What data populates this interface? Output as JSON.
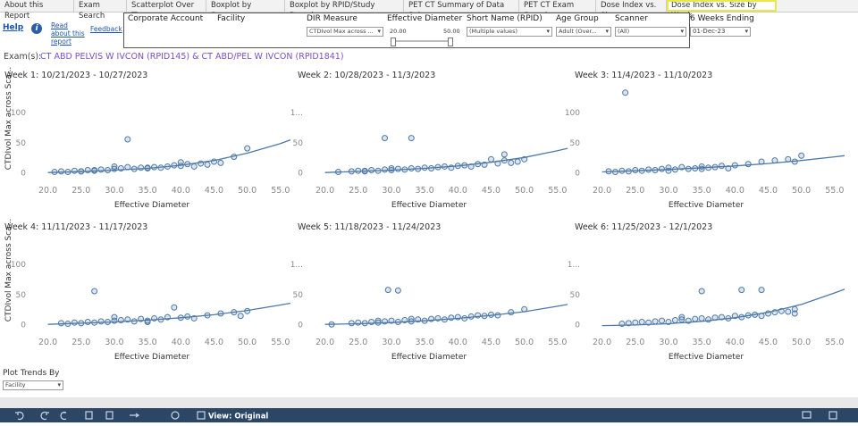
{
  "ui": {
    "tabs": [
      "About this Report",
      "Exam Search",
      "Scatterplot Over Time",
      "Boxplot by Scanner",
      "Boxplot by RPID/Study Descri...",
      "PET CT Summary of Data Sub...",
      "PET CT Exam Search",
      "Dose Index vs. Size",
      "Dose Index vs. Size by Week"
    ],
    "help": "Help",
    "info": "i",
    "read_about": "Read about this report",
    "feedback": "Feedback",
    "filters": [
      {
        "label": "Corporate Account"
      },
      {
        "label": "Facility"
      },
      {
        "label": "DIR Measure",
        "value": "CTDIvol Max across ..."
      },
      {
        "label": "Effective Diameter",
        "min": "20.00",
        "max": "50.00"
      },
      {
        "label": "Short Name (RPID)",
        "value": "(Multiple values)"
      },
      {
        "label": "Age Group",
        "value": "Adult (Over..."
      },
      {
        "label": "Scanner",
        "value": "(All)"
      }
    ],
    "weeks_ending": {
      "label": "6 Weeks Ending",
      "value": "01-Dec-23"
    },
    "exam_label": "Exam(s):",
    "exam_value": "CT ABD PELVIS W IVCON (RPID145) & CT ABD/PEL W IVCON (RPID1841)",
    "plot_trends": {
      "label": "Plot Trends By",
      "value": "Facility"
    },
    "view": "View: Original"
  },
  "chart_data": [
    {
      "type": "scatter",
      "title": "Week 1: 10/21/2023 - 10/27/2023",
      "x_label": "Effective Diameter",
      "y_label": "CTDIvol Max across Sca...",
      "color": "#4e79a7",
      "xlim": [
        17.5,
        56.5
      ],
      "ylim": [
        -10,
        145
      ],
      "xticks": [
        {
          "value": 20,
          "label": "20.0"
        },
        {
          "value": 25,
          "label": "25.0"
        },
        {
          "value": 30,
          "label": "30.0"
        },
        {
          "value": 35,
          "label": "35.0"
        },
        {
          "value": 40,
          "label": "40.0"
        },
        {
          "value": 45,
          "label": "45.0"
        },
        {
          "value": 50,
          "label": "50.0"
        },
        {
          "value": 55,
          "label": "55.0"
        }
      ],
      "yticks": [
        0,
        50,
        100
      ],
      "x": [
        21,
        22,
        23,
        24,
        25,
        26,
        27,
        28,
        29,
        30,
        31,
        32,
        33,
        34,
        35,
        36,
        37,
        38,
        39,
        40,
        41,
        42,
        43,
        44,
        45,
        46,
        48,
        50,
        32,
        27,
        30,
        40,
        35,
        25
      ],
      "values": [
        1,
        2,
        1,
        3,
        2,
        4,
        3,
        5,
        4,
        6,
        7,
        55,
        6,
        8,
        7,
        9,
        8,
        10,
        12,
        11,
        14,
        10,
        15,
        13,
        18,
        16,
        26,
        40,
        9,
        4,
        10,
        17,
        8,
        2
      ],
      "trend": {
        "x": [
          20,
          25,
          30,
          35,
          40,
          45,
          50,
          55,
          56.5
        ],
        "y": [
          0,
          1.5,
          4,
          7,
          12,
          20,
          32,
          48,
          54
        ]
      }
    },
    {
      "type": "scatter",
      "title": "Week 2: 10/28/2023 - 11/3/2023",
      "x_label": "Effective Diameter",
      "color": "#4e79a7",
      "xlim": [
        17.5,
        56.5
      ],
      "ylim": [
        -10,
        145
      ],
      "xticks": [
        {
          "value": 20,
          "label": "20.0"
        },
        {
          "value": 25,
          "label": "25.0"
        },
        {
          "value": 30,
          "label": "30.0"
        },
        {
          "value": 35,
          "label": "35.0"
        },
        {
          "value": 40,
          "label": "40.0"
        },
        {
          "value": 45,
          "label": "45.0"
        },
        {
          "value": 50,
          "label": "50.0"
        },
        {
          "value": 55,
          "label": "55.0"
        }
      ],
      "yticks": [
        0,
        50,
        {
          "value": 100,
          "label": "1..."
        }
      ],
      "x": [
        22,
        24,
        25,
        26,
        27,
        28,
        29,
        29,
        30,
        31,
        32,
        33,
        33,
        34,
        35,
        36,
        37,
        38,
        39,
        40,
        41,
        42,
        43,
        44,
        45,
        46,
        47,
        47,
        48,
        49,
        50,
        26,
        30
      ],
      "values": [
        1,
        2,
        3,
        2,
        4,
        3,
        57,
        5,
        4,
        6,
        5,
        57,
        7,
        6,
        8,
        7,
        9,
        10,
        8,
        11,
        12,
        10,
        14,
        13,
        22,
        15,
        30,
        20,
        16,
        18,
        22,
        3,
        7
      ],
      "trend": {
        "x": [
          20,
          25,
          30,
          35,
          40,
          45,
          50,
          55,
          56.5
        ],
        "y": [
          0,
          2,
          4,
          7,
          11,
          17,
          25,
          36,
          40
        ]
      }
    },
    {
      "type": "scatter",
      "title": "Week 3: 11/4/2023 - 11/10/2023",
      "x_label": "Effective Diameter",
      "color": "#4e79a7",
      "xlim": [
        17.5,
        56.5
      ],
      "ylim": [
        -10,
        145
      ],
      "xticks": [
        {
          "value": 20,
          "label": "20.0"
        },
        {
          "value": 25,
          "label": "25.0"
        },
        {
          "value": 30,
          "label": "30.0"
        },
        {
          "value": 35,
          "label": "35.0"
        },
        {
          "value": 40,
          "label": "40.0"
        },
        {
          "value": 45,
          "label": "45.0"
        },
        {
          "value": 50,
          "label": "50.0"
        },
        {
          "value": 55,
          "label": "55.0"
        }
      ],
      "yticks": [
        0,
        50,
        100
      ],
      "x": [
        21,
        22,
        23,
        23.5,
        24,
        25,
        26,
        27,
        28,
        29,
        30,
        31,
        32,
        33,
        34,
        35,
        36,
        37,
        38,
        39,
        40,
        42,
        44,
        46,
        48,
        49,
        50,
        30,
        35
      ],
      "values": [
        2,
        1,
        3,
        132,
        2,
        4,
        3,
        5,
        4,
        6,
        8,
        5,
        9,
        6,
        7,
        10,
        8,
        9,
        11,
        7,
        12,
        14,
        18,
        20,
        22,
        18,
        28,
        3,
        6
      ],
      "trend": {
        "x": [
          20,
          25,
          30,
          35,
          40,
          45,
          50,
          55,
          56.5
        ],
        "y": [
          1,
          3,
          5,
          8,
          11,
          15,
          20,
          26,
          28
        ]
      }
    },
    {
      "type": "scatter",
      "title": "Week 4: 11/11/2023 - 11/17/2023",
      "x_label": "Effective Diameter",
      "y_label": "CTDIvol Max across Sca...",
      "color": "#4e79a7",
      "xlim": [
        17.5,
        56.5
      ],
      "ylim": [
        -10,
        145
      ],
      "xticks": [
        {
          "value": 20,
          "label": "20.0"
        },
        {
          "value": 25,
          "label": "25.0"
        },
        {
          "value": 30,
          "label": "30.0"
        },
        {
          "value": 35,
          "label": "35.0"
        },
        {
          "value": 40,
          "label": "40.0"
        },
        {
          "value": 45,
          "label": "45.0"
        },
        {
          "value": 50,
          "label": "50.0"
        },
        {
          "value": 55,
          "label": "55.0"
        }
      ],
      "yticks": [
        0,
        50,
        100
      ],
      "x": [
        22,
        23,
        24,
        25,
        26,
        27,
        27,
        28,
        29,
        30,
        31,
        32,
        33,
        34,
        35,
        36,
        37,
        38,
        39,
        40,
        41,
        42,
        44,
        46,
        48,
        49,
        50,
        30,
        35
      ],
      "values": [
        2,
        1,
        3,
        2,
        4,
        55,
        3,
        5,
        4,
        6,
        7,
        8,
        5,
        9,
        6,
        10,
        8,
        12,
        28,
        11,
        13,
        10,
        15,
        18,
        20,
        14,
        22,
        12,
        4
      ],
      "trend": {
        "x": [
          20,
          25,
          30,
          35,
          40,
          45,
          50,
          55,
          56.5
        ],
        "y": [
          0,
          2,
          4,
          7,
          11,
          16,
          23,
          32,
          35
        ]
      }
    },
    {
      "type": "scatter",
      "title": "Week 5: 11/18/2023 - 11/24/2023",
      "x_label": "Effective Diameter",
      "color": "#4e79a7",
      "xlim": [
        17.5,
        56.5
      ],
      "ylim": [
        -10,
        145
      ],
      "xticks": [
        {
          "value": 20,
          "label": "20.0"
        },
        {
          "value": 25,
          "label": "25.0"
        },
        {
          "value": 30,
          "label": "30.0"
        },
        {
          "value": 35,
          "label": "35.0"
        },
        {
          "value": 40,
          "label": "40.0"
        },
        {
          "value": 45,
          "label": "45.0"
        },
        {
          "value": 50,
          "label": "50.0"
        },
        {
          "value": 55,
          "label": "55.0"
        }
      ],
      "yticks": [
        0,
        50,
        {
          "value": 100,
          "label": "1..."
        }
      ],
      "x": [
        21,
        24,
        25,
        26,
        27,
        28,
        29,
        29.5,
        30,
        31,
        31,
        32,
        33,
        34,
        35,
        36,
        37,
        38,
        39,
        40,
        41,
        42,
        43,
        44,
        45,
        46,
        48,
        50,
        28,
        33
      ],
      "values": [
        0,
        2,
        3,
        2,
        4,
        3,
        5,
        57,
        6,
        56,
        4,
        7,
        5,
        8,
        6,
        9,
        10,
        8,
        11,
        12,
        10,
        13,
        15,
        14,
        16,
        15,
        20,
        25,
        6,
        9
      ],
      "trend": {
        "x": [
          20,
          25,
          30,
          35,
          40,
          45,
          50,
          55,
          56.5
        ],
        "y": [
          0,
          1,
          3,
          6,
          10,
          15,
          21,
          30,
          33
        ]
      }
    },
    {
      "type": "scatter",
      "title": "Week 6: 11/25/2023 - 12/1/2023",
      "x_label": "Effective Diameter",
      "color": "#4e79a7",
      "xlim": [
        17.5,
        56.5
      ],
      "ylim": [
        -10,
        145
      ],
      "xticks": [
        {
          "value": 20,
          "label": "20.0"
        },
        {
          "value": 25,
          "label": "25.0"
        },
        {
          "value": 30,
          "label": "30.0"
        },
        {
          "value": 35,
          "label": "35.0"
        },
        {
          "value": 40,
          "label": "40.0"
        },
        {
          "value": 45,
          "label": "45.0"
        },
        {
          "value": 50,
          "label": "50.0"
        },
        {
          "value": 55,
          "label": "55.0"
        }
      ],
      "yticks": [
        0,
        50,
        {
          "value": 100,
          "label": "1..."
        }
      ],
      "x": [
        23,
        24,
        25,
        26,
        27,
        28,
        29,
        30,
        31,
        32,
        33,
        34,
        35,
        35,
        36,
        37,
        38,
        39,
        40,
        41,
        41,
        42,
        43,
        44,
        44,
        45,
        46,
        47,
        48,
        49,
        49,
        32
      ],
      "values": [
        1,
        2,
        3,
        4,
        3,
        5,
        6,
        4,
        7,
        8,
        6,
        9,
        55,
        10,
        8,
        11,
        12,
        10,
        14,
        57,
        12,
        15,
        16,
        57,
        14,
        18,
        20,
        22,
        21,
        25,
        18,
        12
      ],
      "trend": {
        "x": [
          20,
          25,
          30,
          35,
          40,
          45,
          50,
          55,
          56.5
        ],
        "y": [
          -2,
          -1,
          1,
          5,
          11,
          20,
          33,
          52,
          58
        ]
      }
    }
  ]
}
